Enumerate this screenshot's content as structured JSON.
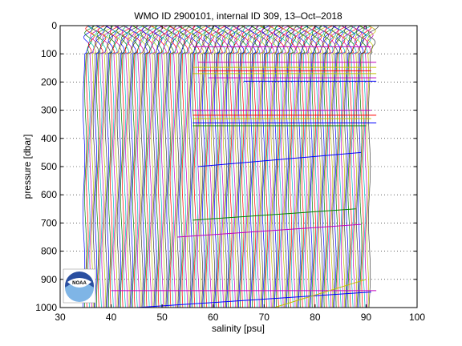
{
  "chart_data": {
    "type": "line",
    "title": "WMO ID 2900101, internal ID 309, 13–Oct–2018",
    "xlabel": "salinity [psu]",
    "ylabel": "pressure [dbar]",
    "xlim": [
      30,
      100
    ],
    "ylim": [
      1000,
      0
    ],
    "y_reversed": true,
    "grid": "dotted horizontal",
    "xticks": [
      "30",
      "40",
      "50",
      "60",
      "70",
      "80",
      "90",
      "100"
    ],
    "yticks": [
      "0",
      "100",
      "200",
      "300",
      "400",
      "500",
      "600",
      "700",
      "800",
      "900",
      "1000"
    ],
    "series_colors": [
      "#0000ff",
      "#008000",
      "#ff0000",
      "#00bfbf",
      "#bf00bf",
      "#bfbf00",
      "#404040"
    ],
    "profiles": {
      "count": 168,
      "first_offset_psu": 35.0,
      "last_offset_psu": 91.0,
      "pressure_min": 0,
      "pressure_max": 1000
    },
    "spikes": [
      {
        "pressure": 75,
        "from": 56,
        "to": 91,
        "color": "#bf00bf"
      },
      {
        "pressure": 130,
        "from": 57,
        "to": 92,
        "color": "#bf00bf"
      },
      {
        "pressure": 148,
        "from": 56,
        "to": 92,
        "color": "#bfbf00"
      },
      {
        "pressure": 160,
        "from": 57,
        "to": 91,
        "color": "#ff0000"
      },
      {
        "pressure": 170,
        "from": 56,
        "to": 92,
        "color": "#bfbf00"
      },
      {
        "pressure": 185,
        "from": 59,
        "to": 92,
        "color": "#bf00bf"
      },
      {
        "pressure": 197,
        "from": 66,
        "to": 92,
        "color": "#0000ff"
      },
      {
        "pressure": 300,
        "from": 56,
        "to": 91,
        "color": "#bf00bf"
      },
      {
        "pressure": 318,
        "from": 56,
        "to": 92,
        "color": "#ff0000"
      },
      {
        "pressure": 330,
        "from": 56,
        "to": 91,
        "color": "#bfbf00"
      },
      {
        "pressure": 345,
        "from": 56,
        "to": 92,
        "color": "#0000ff"
      },
      {
        "pressure": 355,
        "from": 56,
        "to": 90,
        "color": "#008000"
      },
      {
        "pressure": 940,
        "from": 40,
        "to": 92,
        "color": "#bf00bf"
      }
    ],
    "diagonals": [
      {
        "x1": 57,
        "p1": 500,
        "x2": 89,
        "p2": 450,
        "color": "#0000ff"
      },
      {
        "x1": 56,
        "p1": 690,
        "x2": 88,
        "p2": 650,
        "color": "#008000"
      },
      {
        "x1": 53,
        "p1": 750,
        "x2": 89,
        "p2": 705,
        "color": "#bf00bf"
      },
      {
        "x1": 45,
        "p1": 1000,
        "x2": 91,
        "p2": 945,
        "color": "#0000ff"
      },
      {
        "x1": 72,
        "p1": 1000,
        "x2": 90,
        "p2": 900,
        "color": "#bfbf00"
      }
    ]
  },
  "logo": {
    "text": "NOAA"
  }
}
